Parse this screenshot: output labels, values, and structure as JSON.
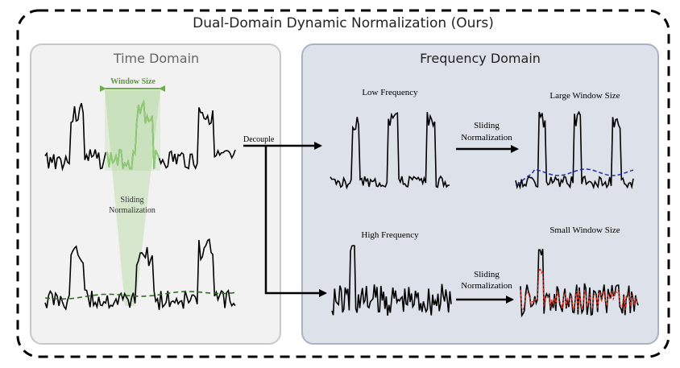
{
  "title": "Dual-Domain Dynamic Normalization (Ours)",
  "time_domain": {
    "heading": "Time Domain",
    "window_label": "Window Size",
    "sliding_label_line1": "Sliding",
    "sliding_label_line2": "Normalization"
  },
  "decouple_label": "Decouple",
  "frequency_domain": {
    "heading": "Frequency Domain",
    "low_label": "Low Frequency",
    "high_label": "High Frequency",
    "large_label": "Large Window Size",
    "small_label": "Small Window Size",
    "sliding_top_line1": "Sliding",
    "sliding_top_line2": "Normalization",
    "sliding_bottom_line1": "Sliding",
    "sliding_bottom_line2": "Normalization"
  },
  "colors": {
    "time_panel_bg": "#f2f2f2",
    "time_panel_border": "#c8c8c8",
    "freq_panel_bg": "#dde1ea",
    "freq_panel_border": "#aab2c4",
    "window_green": "#6fae50",
    "trend_green": "#2f6e22",
    "large_window_blue": "#1f2fa8",
    "small_window_red": "#e0301e",
    "signal": "#000000"
  }
}
